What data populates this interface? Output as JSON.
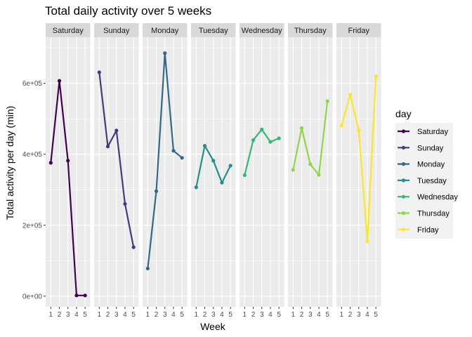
{
  "chart_data": {
    "type": "line",
    "title": "Total daily activity over 5 weeks",
    "xlabel": "Week",
    "ylabel": "Total activity per day (min)",
    "x": [
      1,
      2,
      3,
      4,
      5
    ],
    "x_tick_labels": [
      "1",
      "2",
      "3",
      "4",
      "5"
    ],
    "ylim": [
      -30000,
      730000
    ],
    "y_ticks": [
      0,
      200000,
      400000,
      600000
    ],
    "y_tick_labels": [
      "0e+00",
      "2e+05",
      "4e+05",
      "6e+05"
    ],
    "grid": true,
    "facet_by": "day",
    "legend": {
      "title": "day",
      "placement": "right"
    },
    "series": [
      {
        "name": "Saturday",
        "color": "#440154",
        "values": [
          376000,
          607000,
          382000,
          2000,
          2000
        ]
      },
      {
        "name": "Sunday",
        "color": "#443983",
        "values": [
          631000,
          422000,
          467000,
          260000,
          138000
        ]
      },
      {
        "name": "Monday",
        "color": "#31688E",
        "values": [
          78000,
          296000,
          685000,
          410000,
          390000
        ]
      },
      {
        "name": "Tuesday",
        "color": "#21908C",
        "values": [
          307000,
          424000,
          382000,
          320000,
          368000
        ]
      },
      {
        "name": "Wednesday",
        "color": "#35B779",
        "values": [
          341000,
          440000,
          470000,
          435000,
          445000
        ]
      },
      {
        "name": "Thursday",
        "color": "#8FD744",
        "values": [
          356000,
          474000,
          372000,
          342000,
          550000
        ]
      },
      {
        "name": "Friday",
        "color": "#FDE725",
        "values": [
          481000,
          568000,
          468000,
          155000,
          620000
        ]
      }
    ]
  }
}
